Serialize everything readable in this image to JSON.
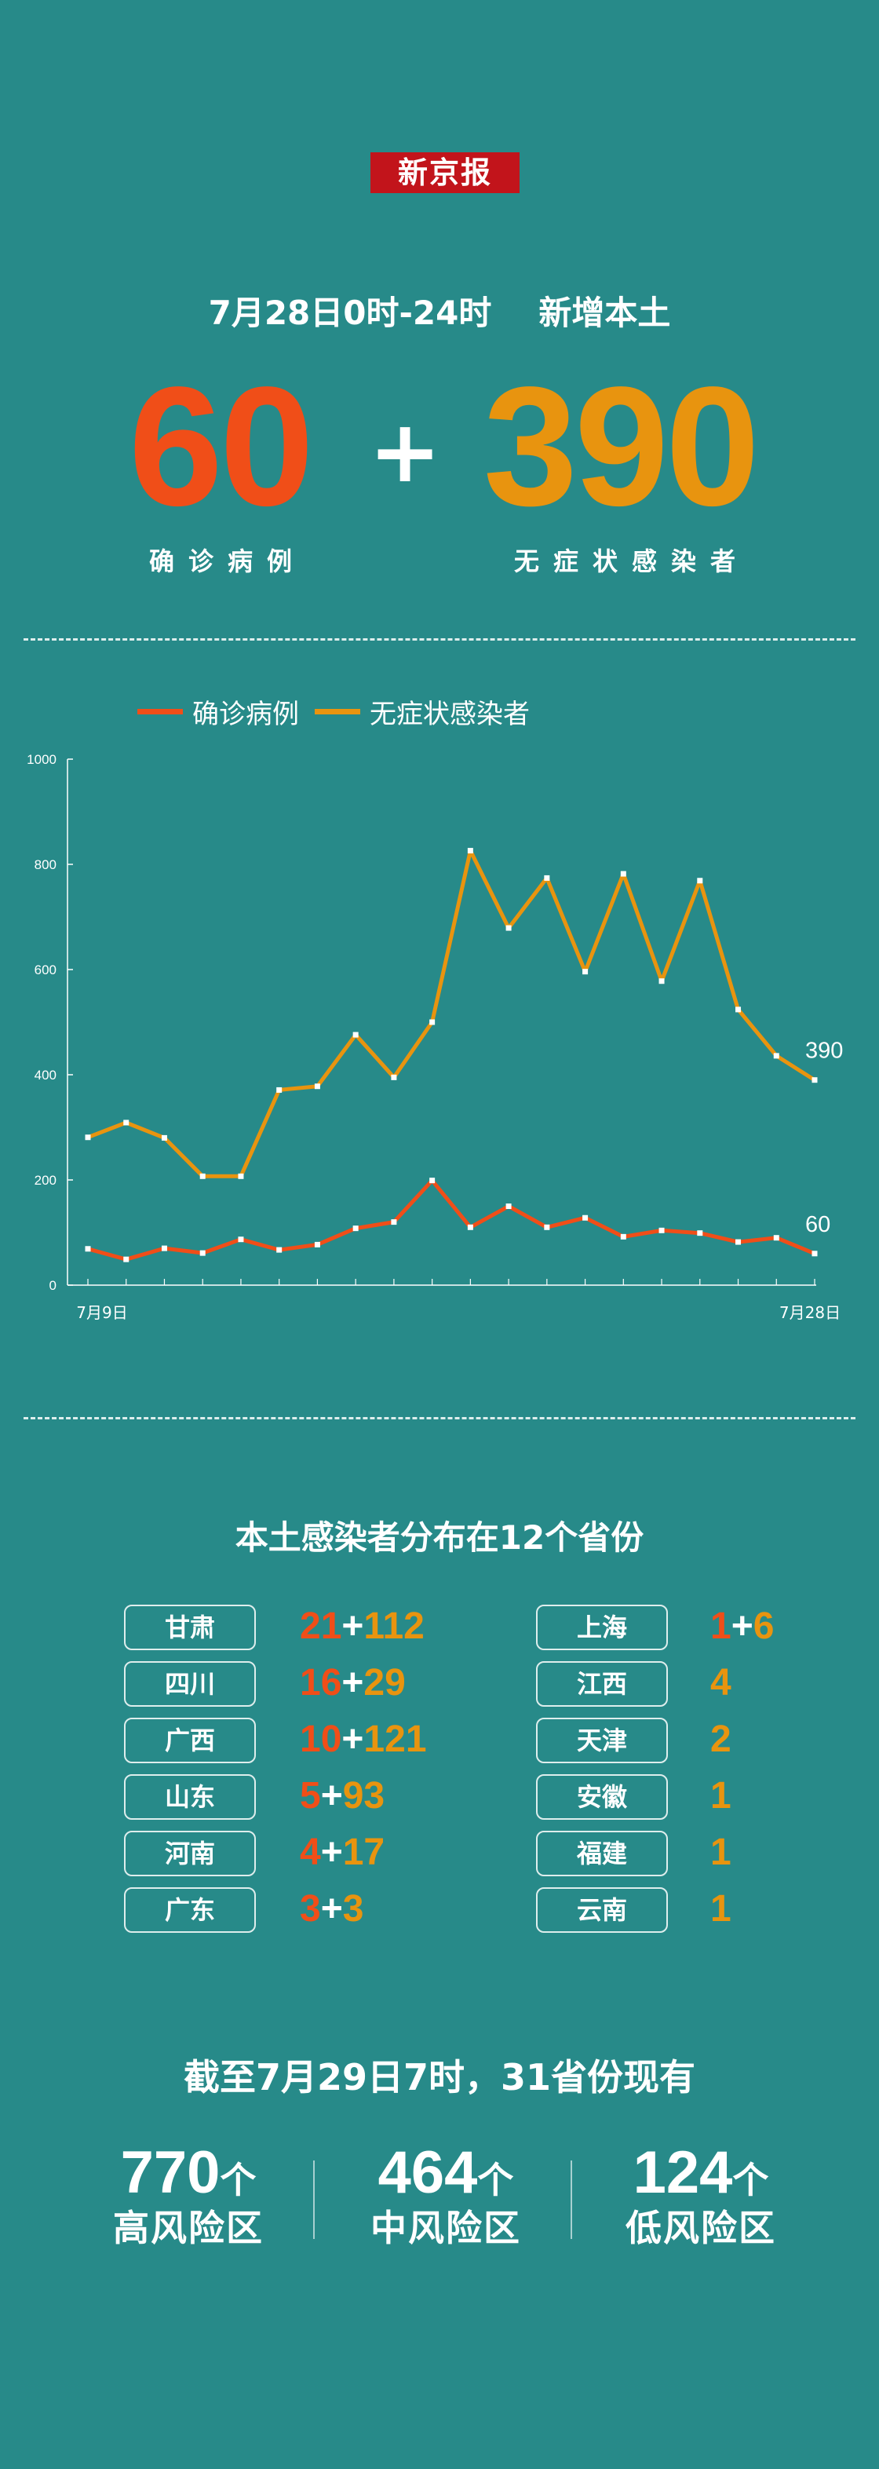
{
  "brand": "新京报",
  "headline": {
    "date_range": "7月28日0时-24时",
    "suffix": "新增本土"
  },
  "totals": {
    "confirmed": "60",
    "confirmed_label": "确诊病例",
    "plus": "+",
    "asymptomatic": "390",
    "asymptomatic_label": "无症状感染者"
  },
  "colors": {
    "confirmed": "#f04e18",
    "asymptomatic": "#e8940f",
    "background": "#278a89"
  },
  "chart_data": {
    "type": "line",
    "x": [
      "7月9日",
      "7月10日",
      "7月11日",
      "7月12日",
      "7月13日",
      "7月14日",
      "7月15日",
      "7月16日",
      "7月17日",
      "7月18日",
      "7月19日",
      "7月20日",
      "7月21日",
      "7月22日",
      "7月23日",
      "7月24日",
      "7月25日",
      "7月26日",
      "7月27日",
      "7月28日"
    ],
    "x_tick_labels": [
      "7月9日",
      "7月28日"
    ],
    "series": [
      {
        "name": "确诊病例",
        "color": "#f04e18",
        "values": [
          69,
          49,
          70,
          61,
          87,
          67,
          77,
          108,
          120,
          199,
          110,
          150,
          110,
          128,
          92,
          104,
          99,
          82,
          90,
          60
        ],
        "end_label": "60"
      },
      {
        "name": "无症状感染者",
        "color": "#e8940f",
        "values": [
          281,
          309,
          280,
          207,
          207,
          371,
          378,
          476,
          395,
          500,
          826,
          679,
          774,
          596,
          782,
          578,
          769,
          524,
          436,
          390
        ],
        "end_label": "390"
      }
    ],
    "ylim": [
      0,
      1000
    ],
    "yticks": [
      "0",
      "200",
      "400",
      "600",
      "800",
      "1000"
    ],
    "ytick_values": [
      0,
      200,
      400,
      600,
      800,
      1000
    ],
    "legend_position": "top",
    "grid": false
  },
  "provinces": {
    "title": "本土感染者分布在12个省份",
    "left": [
      {
        "name": "甘肃",
        "confirmed": "21",
        "plus": "+",
        "asymptomatic": "112"
      },
      {
        "name": "四川",
        "confirmed": "16",
        "plus": "+",
        "asymptomatic": "29"
      },
      {
        "name": "广西",
        "confirmed": "10",
        "plus": "+",
        "asymptomatic": "121"
      },
      {
        "name": "山东",
        "confirmed": "5",
        "plus": "+",
        "asymptomatic": "93"
      },
      {
        "name": "河南",
        "confirmed": "4",
        "plus": "+",
        "asymptomatic": "17"
      },
      {
        "name": "广东",
        "confirmed": "3",
        "plus": "+",
        "asymptomatic": "3"
      }
    ],
    "right": [
      {
        "name": "上海",
        "confirmed": "1",
        "plus": "+",
        "asymptomatic": "6"
      },
      {
        "name": "江西",
        "confirmed": "",
        "plus": "",
        "asymptomatic": "4"
      },
      {
        "name": "天津",
        "confirmed": "",
        "plus": "",
        "asymptomatic": "2"
      },
      {
        "name": "安徽",
        "confirmed": "",
        "plus": "",
        "asymptomatic": "1"
      },
      {
        "name": "福建",
        "confirmed": "",
        "plus": "",
        "asymptomatic": "1"
      },
      {
        "name": "云南",
        "confirmed": "",
        "plus": "",
        "asymptomatic": "1"
      }
    ]
  },
  "risk": {
    "title": "截至7月29日7时，31省份现有",
    "areas": [
      {
        "count": "770",
        "unit": "个",
        "label": "高风险区"
      },
      {
        "count": "464",
        "unit": "个",
        "label": "中风险区"
      },
      {
        "count": "124",
        "unit": "个",
        "label": "低风险区"
      }
    ]
  }
}
